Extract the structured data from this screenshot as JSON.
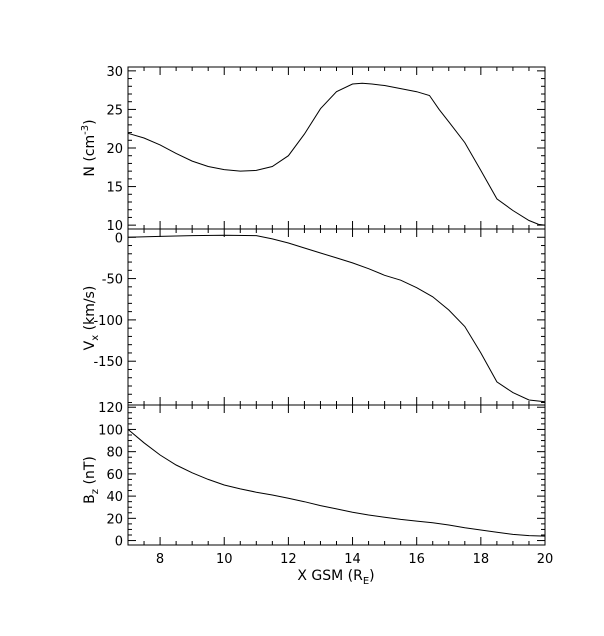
{
  "chart_data": [
    {
      "type": "line",
      "panel": "density",
      "ylabel": "N (cm",
      "ylabel_sup": "-3",
      "ylabel_tail": ")",
      "xlim": [
        7,
        20
      ],
      "ylim": [
        9.5,
        30.5
      ],
      "yticks": [
        10,
        15,
        20,
        25,
        30
      ],
      "ytick_labels": [
        "10",
        "15",
        "20",
        "25",
        "30"
      ],
      "series": [
        {
          "x": [
            7.0,
            7.5,
            8.0,
            8.5,
            9.0,
            9.5,
            10.0,
            10.5,
            11.0,
            11.5,
            12.0,
            12.5,
            13.0,
            13.5,
            14.0,
            14.3,
            14.6,
            15.0,
            15.5,
            16.0,
            16.4,
            16.7,
            17.0,
            17.5,
            18.0,
            18.5,
            19.0,
            19.5,
            19.8,
            20.0
          ],
          "y": [
            21.9,
            21.3,
            20.4,
            19.3,
            18.3,
            17.6,
            17.2,
            17.0,
            17.1,
            17.6,
            19.0,
            21.8,
            25.1,
            27.3,
            28.3,
            28.4,
            28.3,
            28.1,
            27.7,
            27.3,
            26.8,
            25.0,
            23.4,
            20.7,
            17.1,
            13.4,
            11.9,
            10.6,
            10.1,
            10.0
          ]
        }
      ]
    },
    {
      "type": "line",
      "panel": "velocity",
      "ylabel": "V",
      "ylabel_sub": "x",
      "ylabel_tail": " (km/s)",
      "xlim": [
        7,
        20
      ],
      "ylim": [
        -203,
        10
      ],
      "yticks": [
        0,
        -50,
        -100,
        -150
      ],
      "ytick_labels": [
        "0",
        "-50",
        "-100",
        "-150"
      ],
      "series": [
        {
          "x": [
            7.0,
            8.0,
            9.0,
            10.0,
            11.0,
            11.5,
            12.0,
            12.5,
            13.0,
            13.5,
            14.0,
            14.5,
            15.0,
            15.5,
            16.0,
            16.5,
            17.0,
            17.5,
            18.0,
            18.5,
            19.0,
            19.5,
            20.0
          ],
          "y": [
            0.0,
            1.0,
            2.0,
            2.5,
            2.0,
            -2.0,
            -7.0,
            -13.0,
            -19.0,
            -25.0,
            -31.0,
            -38.0,
            -46.0,
            -52.0,
            -61.0,
            -72.0,
            -88.0,
            -108.0,
            -140.0,
            -175.0,
            -188.0,
            -197.0,
            -199.0
          ]
        }
      ]
    },
    {
      "type": "line",
      "panel": "magnetic",
      "ylabel": "B",
      "ylabel_sub": "z",
      "ylabel_tail": " (nT)",
      "xlabel": "X GSM (R",
      "xlabel_sub": "E",
      "xlabel_tail": ")",
      "xlim": [
        7,
        20
      ],
      "ylim": [
        -4,
        122
      ],
      "yticks": [
        0,
        20,
        40,
        60,
        80,
        100,
        120
      ],
      "ytick_labels": [
        "0",
        "20",
        "40",
        "60",
        "80",
        "100",
        "120"
      ],
      "xticks": [
        8,
        10,
        12,
        14,
        16,
        18,
        20
      ],
      "xtick_labels": [
        "8",
        "10",
        "12",
        "14",
        "16",
        "18",
        "20"
      ],
      "series": [
        {
          "x": [
            7.0,
            7.5,
            8.0,
            8.5,
            9.0,
            9.5,
            10.0,
            10.5,
            11.0,
            11.5,
            12.0,
            12.5,
            13.0,
            13.5,
            14.0,
            14.5,
            15.0,
            15.5,
            16.0,
            16.5,
            17.0,
            17.5,
            18.0,
            18.5,
            19.0,
            19.5,
            20.0
          ],
          "y": [
            100.0,
            88.0,
            77.0,
            68.0,
            61.0,
            55.0,
            50.0,
            46.5,
            43.5,
            41.0,
            38.0,
            35.0,
            31.5,
            28.5,
            25.5,
            23.0,
            21.0,
            19.0,
            17.5,
            16.0,
            14.0,
            11.5,
            9.5,
            7.5,
            5.5,
            4.5,
            4.0
          ]
        }
      ]
    }
  ]
}
